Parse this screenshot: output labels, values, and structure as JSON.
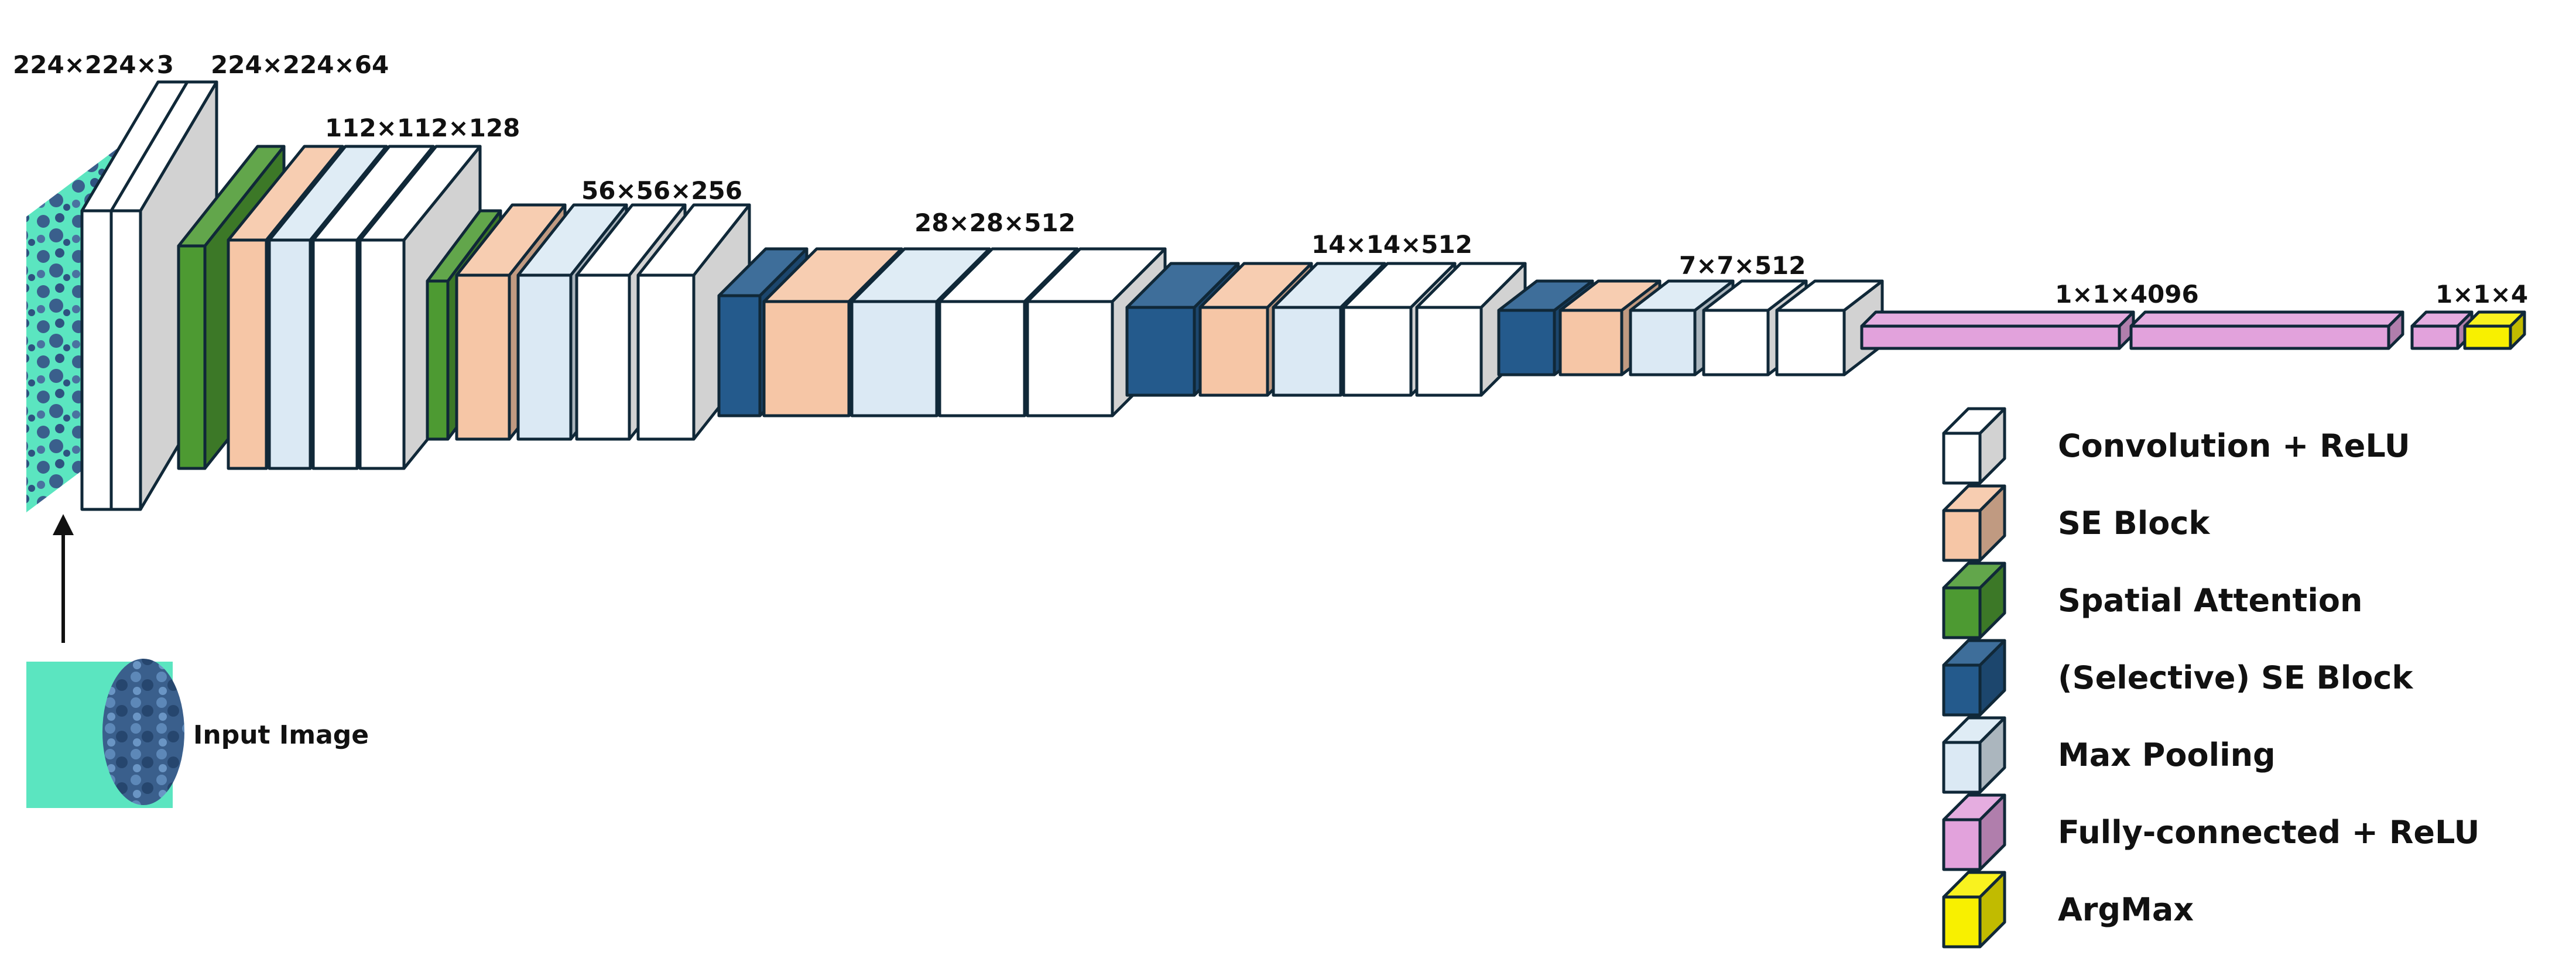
{
  "colors": {
    "conv": "#ffffff",
    "se": "#f6c6a6",
    "spatial": "#4d9a32",
    "selective_se": "#245a8c",
    "pool": "#dbe9f4",
    "fc": "#e2a2dc",
    "argmax": "#f8f000",
    "stroke": "#102838",
    "image_teal": "#5be5c0",
    "image_cells": "#3a5f8c"
  },
  "dimension_labels": {
    "input": "224×224×3",
    "stage1": "224×224×64",
    "stage2": "112×112×128",
    "stage3": "56×56×256",
    "stage4": "28×28×512",
    "stage5": "14×14×512",
    "stage6": "7×7×512",
    "fc": "1×1×4096",
    "output": "1×1×4"
  },
  "input_image": {
    "label": "Input Image"
  },
  "legend": [
    {
      "key": "conv",
      "label": "Convolution + ReLU"
    },
    {
      "key": "se",
      "label": "SE Block"
    },
    {
      "key": "spatial",
      "label": "Spatial Attention"
    },
    {
      "key": "selective_se",
      "label": "(Selective) SE Block"
    },
    {
      "key": "pool",
      "label": "Max Pooling"
    },
    {
      "key": "fc",
      "label": "Fully-connected + ReLU"
    },
    {
      "key": "argmax",
      "label": "ArgMax"
    }
  ]
}
